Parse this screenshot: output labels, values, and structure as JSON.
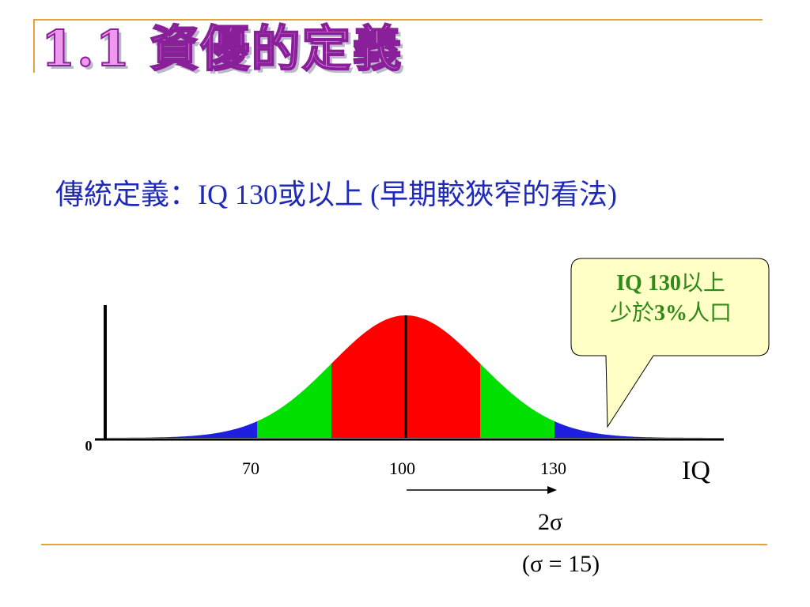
{
  "slide": {
    "title": "1.1  資優的定義",
    "subtitle": "傳統定義：IQ 130或以上 (早期較狹窄的看法)"
  },
  "callout": {
    "line1_bold": "IQ 130",
    "line1_rest": "以上",
    "line2_pre": "少於",
    "line2_bold": "3%",
    "line2_post": "人口"
  },
  "chart_data": {
    "type": "area",
    "mean": 100,
    "sigma": 15,
    "x_ticks": [
      70,
      100,
      130
    ],
    "y_tick_label": "0",
    "xlabel": "IQ",
    "regions": [
      {
        "from": 40,
        "to": 70,
        "color": "#1f1fe0"
      },
      {
        "from": 70,
        "to": 85,
        "color": "#00e000"
      },
      {
        "from": 85,
        "to": 115,
        "color": "#ff0000"
      },
      {
        "from": 115,
        "to": 130,
        "color": "#00e000"
      },
      {
        "from": 130,
        "to": 160,
        "color": "#1f1fe0"
      }
    ],
    "arrow_label": "2σ",
    "sigma_note": "(σ = 15)"
  }
}
